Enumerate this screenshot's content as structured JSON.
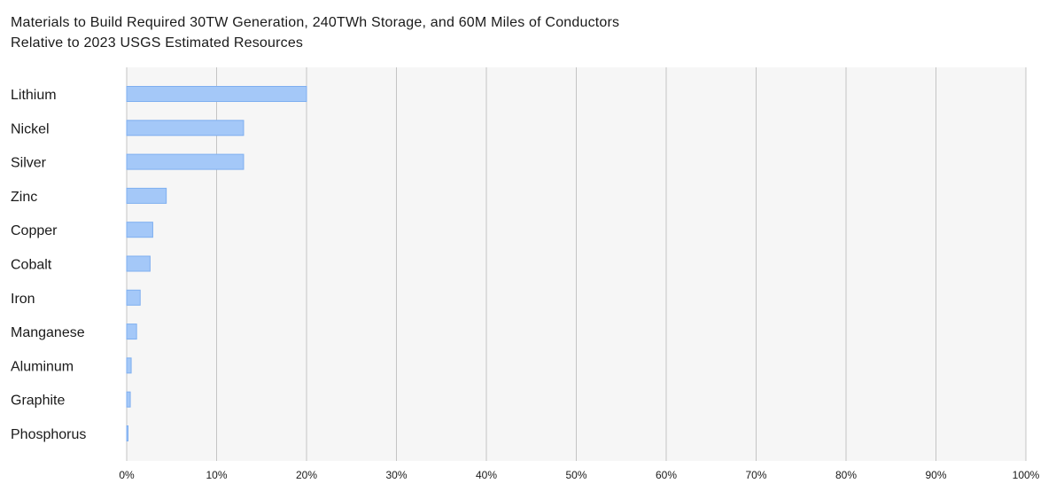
{
  "chart_data": {
    "type": "bar",
    "orientation": "horizontal",
    "title": "Materials to Build Required 30TW Generation, 240TWh Storage, and 60M Miles of Conductors",
    "subtitle": "Relative to 2023 USGS Estimated Resources",
    "categories": [
      "Lithium",
      "Nickel",
      "Silver",
      "Zinc",
      "Copper",
      "Cobalt",
      "Iron",
      "Manganese",
      "Aluminum",
      "Graphite",
      "Phosphorus"
    ],
    "values": [
      20.0,
      13.0,
      13.0,
      4.4,
      2.9,
      2.6,
      1.5,
      1.1,
      0.5,
      0.4,
      0.1
    ],
    "unit": "%",
    "xlim": [
      0,
      100
    ],
    "xticks": [
      0,
      10,
      20,
      30,
      40,
      50,
      60,
      70,
      80,
      90,
      100
    ],
    "xtick_labels": [
      "0%",
      "10%",
      "20%",
      "30%",
      "40%",
      "50%",
      "60%",
      "70%",
      "80%",
      "90%",
      "100%"
    ],
    "xlabel": "",
    "ylabel": "",
    "grid": "vertical",
    "legend": "none",
    "colors": {
      "bar_fill": "#a4c8f8",
      "bar_stroke": "#7faff0",
      "plot_background": "#f6f6f6",
      "grid_line": "#c4c4c4"
    }
  }
}
